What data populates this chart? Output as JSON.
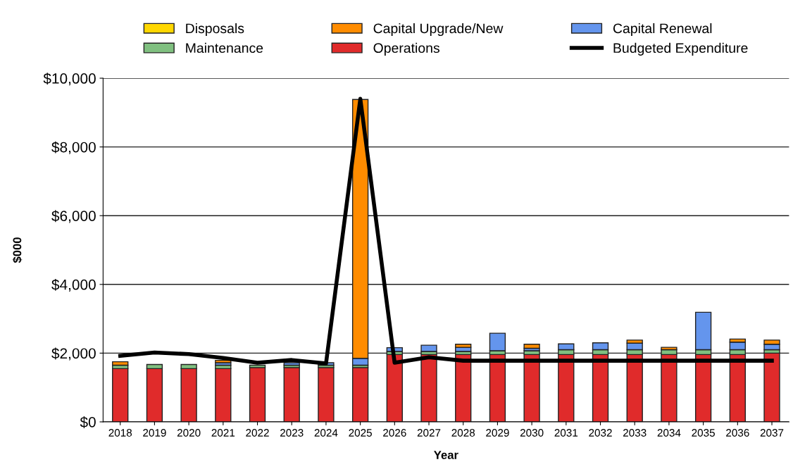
{
  "chart_data": {
    "type": "bar",
    "stacked": true,
    "xlabel": "Year",
    "ylabel": "$000",
    "categories": [
      "2018",
      "2019",
      "2020",
      "2021",
      "2022",
      "2023",
      "2024",
      "2025",
      "2026",
      "2027",
      "2028",
      "2029",
      "2030",
      "2031",
      "2032",
      "2033",
      "2034",
      "2035",
      "2036",
      "2037"
    ],
    "series": [
      {
        "name": "Operations",
        "color": "#e02b2b",
        "values": [
          1550,
          1550,
          1550,
          1550,
          1580,
          1580,
          1580,
          1580,
          1960,
          1960,
          1960,
          1960,
          1960,
          1960,
          1960,
          1960,
          1960,
          1960,
          1960,
          2000
        ]
      },
      {
        "name": "Maintenance",
        "color": "#80c080",
        "values": [
          100,
          120,
          120,
          100,
          70,
          70,
          70,
          70,
          90,
          90,
          90,
          110,
          110,
          140,
          140,
          140,
          140,
          140,
          140,
          100
        ]
      },
      {
        "name": "Capital Renewal",
        "color": "#6495ed",
        "values": [
          null,
          null,
          null,
          70,
          null,
          70,
          70,
          200,
          110,
          180,
          120,
          510,
          70,
          170,
          200,
          190,
          null,
          1090,
          220,
          160
        ]
      },
      {
        "name": "Capital Upgrade/New",
        "color": "#ff8c00",
        "values": [
          100,
          null,
          null,
          70,
          null,
          null,
          null,
          7530,
          null,
          null,
          90,
          null,
          120,
          null,
          null,
          90,
          70,
          null,
          90,
          120
        ]
      },
      {
        "name": "Disposals",
        "color": "#ffd700",
        "values": [
          null,
          null,
          null,
          null,
          null,
          null,
          null,
          null,
          null,
          null,
          null,
          null,
          null,
          null,
          null,
          null,
          null,
          null,
          null,
          null
        ]
      },
      {
        "name": "Budgeted Expenditure",
        "type": "line",
        "color": "#000000",
        "values": [
          1920,
          2020,
          1970,
          1860,
          1720,
          1800,
          1700,
          9400,
          1720,
          1880,
          1780,
          1780,
          1780,
          1780,
          1780,
          1780,
          1780,
          1780,
          1780,
          1780
        ]
      }
    ],
    "ylim": [
      0,
      10000
    ],
    "yticks": [
      {
        "value": 0,
        "label": "$0"
      },
      {
        "value": 2000,
        "label": "$2,000"
      },
      {
        "value": 4000,
        "label": "$4,000"
      },
      {
        "value": 6000,
        "label": "$6,000"
      },
      {
        "value": 8000,
        "label": "$8,000"
      },
      {
        "value": 10000,
        "label": "$10,000"
      }
    ],
    "grid": "y",
    "legend": "top",
    "marker": "none",
    "line_style": "solid"
  }
}
